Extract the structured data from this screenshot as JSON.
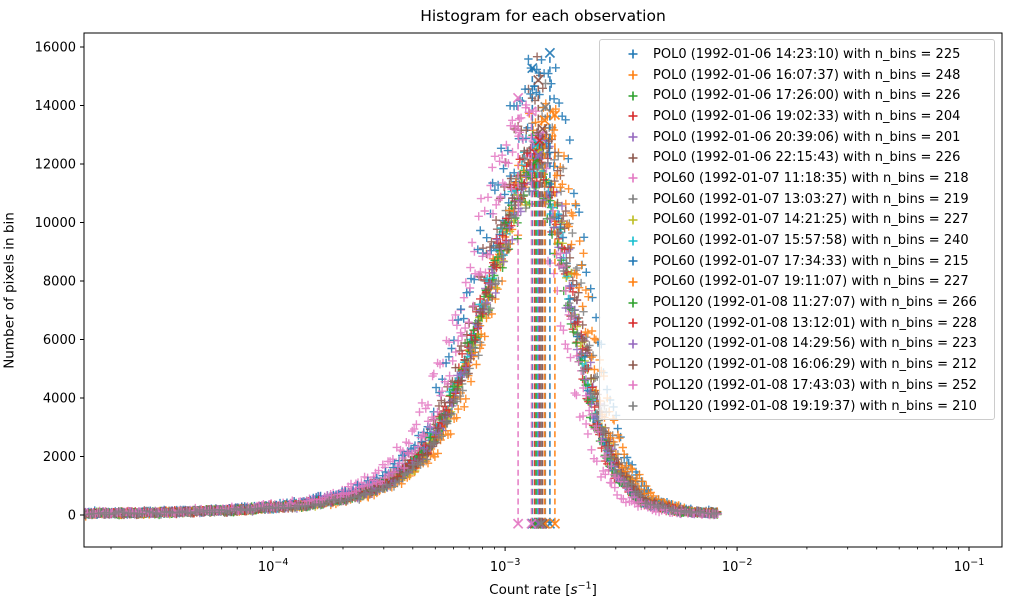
{
  "figure": {
    "background": "#ffffff"
  },
  "chart_data": {
    "type": "scatter",
    "marker": "+",
    "title": "Histogram for each observation",
    "xlabel": "Count rate [s⁻¹]",
    "xlabel_parts": {
      "pre": "Count rate [",
      "var": "s",
      "sup": "−1",
      "post": "]"
    },
    "ylabel": "Number of pixels in bin",
    "x_axis": {
      "scale": "log",
      "min": 1.53e-05,
      "max": 0.1387,
      "tick_exps": [
        -4,
        -3,
        -2,
        -1
      ]
    },
    "y_axis": {
      "min": -1095,
      "max": 16480,
      "ticks": [
        0,
        2000,
        4000,
        6000,
        8000,
        10000,
        12000,
        14000,
        16000
      ]
    },
    "grid": false,
    "legend_position": "upper right",
    "data_range_log10": {
      "start": -4.8152,
      "end": -2.081
    },
    "shape_profile": [
      [
        -2.0,
        0.0035
      ],
      [
        -1.6,
        0.007
      ],
      [
        -1.3,
        0.013
      ],
      [
        -1.0,
        0.027
      ],
      [
        -0.8,
        0.05
      ],
      [
        -0.65,
        0.085
      ],
      [
        -0.5,
        0.16
      ],
      [
        -0.4,
        0.27
      ],
      [
        -0.3,
        0.44
      ],
      [
        -0.2,
        0.65
      ],
      [
        -0.1,
        0.86
      ],
      [
        0.0,
        1.0
      ],
      [
        0.08,
        0.8
      ],
      [
        0.16,
        0.52
      ],
      [
        0.24,
        0.28
      ],
      [
        0.33,
        0.12
      ],
      [
        0.45,
        0.035
      ],
      [
        0.6,
        0.01
      ],
      [
        0.8,
        0.003
      ],
      [
        1.0,
        0.0015
      ]
    ],
    "series": [
      {
        "label": "POL0 (1992-01-06 14:23:10) with n_bins = 225",
        "color": "#1f77b4",
        "n_bins": 225,
        "peak_rate": 0.00156,
        "peak_value": 15700,
        "vline_rate": 0.00156,
        "vline_top": 15800
      },
      {
        "label": "POL0 (1992-01-06 16:07:37) with n_bins = 248",
        "color": "#ff7f0e",
        "n_bins": 248,
        "peak_rate": 0.0016,
        "peak_value": 13680,
        "vline_rate": 0.00164,
        "vline_top": 13680
      },
      {
        "label": "POL0 (1992-01-06 17:26:00) with n_bins = 226",
        "color": "#2ca02c",
        "n_bins": 226,
        "peak_rate": 0.0014,
        "peak_value": 12600,
        "vline_rate": 0.0014,
        "vline_top": 12600
      },
      {
        "label": "POL0 (1992-01-06 19:02:33) with n_bins = 204",
        "color": "#d62728",
        "n_bins": 204,
        "peak_rate": 0.00134,
        "peak_value": 12400,
        "vline_rate": 0.00134,
        "vline_top": 12400
      },
      {
        "label": "POL0 (1992-01-06 20:39:06) with n_bins = 201",
        "color": "#9467bd",
        "n_bins": 201,
        "peak_rate": 0.00144,
        "peak_value": 12900,
        "vline_rate": 0.00144,
        "vline_top": 12900
      },
      {
        "label": "POL0 (1992-01-06 22:15:43) with n_bins = 226",
        "color": "#8c564b",
        "n_bins": 226,
        "peak_rate": 0.00139,
        "peak_value": 14870,
        "vline_rate": 0.00139,
        "vline_top": 14870
      },
      {
        "label": "POL60 (1992-01-07 11:18:35) with n_bins = 218",
        "color": "#e377c2",
        "n_bins": 218,
        "peak_rate": 0.00116,
        "peak_value": 14260,
        "vline_rate": 0.001138,
        "vline_top": 14260
      },
      {
        "label": "POL60 (1992-01-07 13:03:27) with n_bins = 219",
        "color": "#7f7f7f",
        "n_bins": 219,
        "peak_rate": 0.00149,
        "peak_value": 13950,
        "vline_rate": 0.00149,
        "vline_top": 13950
      },
      {
        "label": "POL60 (1992-01-07 14:21:25) with n_bins = 227",
        "color": "#bcbd22",
        "n_bins": 227,
        "peak_rate": 0.00142,
        "peak_value": 12500,
        "vline_rate": 0.00142,
        "vline_top": 12500
      },
      {
        "label": "POL60 (1992-01-07 15:57:58) with n_bins = 240",
        "color": "#17becf",
        "n_bins": 240,
        "peak_rate": 0.00138,
        "peak_value": 12700,
        "vline_rate": 0.00138,
        "vline_top": 12700
      },
      {
        "label": "POL60 (1992-01-07 17:34:33) with n_bins = 215",
        "color": "#1f77b4",
        "n_bins": 215,
        "peak_rate": 0.00131,
        "peak_value": 15280,
        "vline_rate": 0.00131,
        "vline_top": 15280
      },
      {
        "label": "POL60 (1992-01-07 19:11:07) with n_bins = 227",
        "color": "#ff7f0e",
        "n_bins": 227,
        "peak_rate": 0.00148,
        "peak_value": 13500,
        "vline_rate": 0.00148,
        "vline_top": 13500
      },
      {
        "label": "POL120 (1992-01-08 11:27:07) with n_bins = 266",
        "color": "#2ca02c",
        "n_bins": 266,
        "peak_rate": 0.00136,
        "peak_value": 12100,
        "vline_rate": 0.00136,
        "vline_top": 12100
      },
      {
        "label": "POL120 (1992-01-08 13:12:01) with n_bins = 228",
        "color": "#d62728",
        "n_bins": 228,
        "peak_rate": 0.00141,
        "peak_value": 12800,
        "vline_rate": 0.00141,
        "vline_top": 12800
      },
      {
        "label": "POL120 (1992-01-08 14:29:56) with n_bins = 223",
        "color": "#9467bd",
        "n_bins": 223,
        "peak_rate": 0.00139,
        "peak_value": 12300,
        "vline_rate": 0.001395,
        "vline_top": 12300
      },
      {
        "label": "POL120 (1992-01-08 16:06:29) with n_bins = 212",
        "color": "#8c564b",
        "n_bins": 212,
        "peak_rate": 0.00145,
        "peak_value": 13200,
        "vline_rate": 0.00145,
        "vline_top": 13200
      },
      {
        "label": "POL120 (1992-01-08 17:43:03) with n_bins = 252",
        "color": "#e377c2",
        "n_bins": 252,
        "peak_rate": 0.0013,
        "peak_value": 13800,
        "vline_rate": 0.0013,
        "vline_top": 13800
      },
      {
        "label": "POL120 (1992-01-08 19:19:37) with n_bins = 210",
        "color": "#7f7f7f",
        "n_bins": 210,
        "peak_rate": 0.00143,
        "peak_value": 11900,
        "vline_rate": 0.00143,
        "vline_top": 11900
      }
    ]
  }
}
